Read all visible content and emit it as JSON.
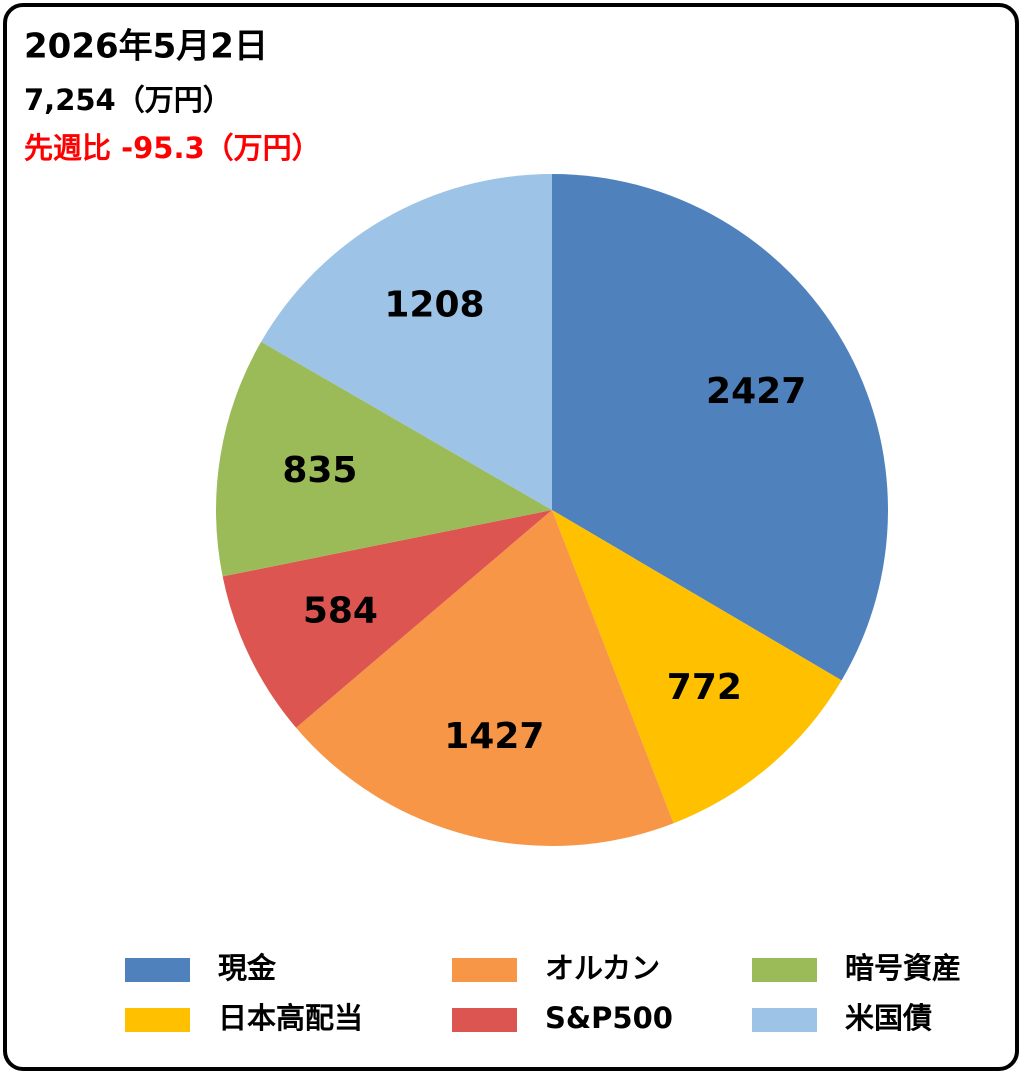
{
  "chart_data": {
    "type": "pie",
    "title": "2026年5月2日",
    "subtitle": "7,254（万円）",
    "annotation": "先週比 -95.3（万円）",
    "categories": [
      "現金",
      "日本高配当",
      "オルカン",
      "S&P500",
      "暗号資産",
      "米国債"
    ],
    "values": [
      2427,
      772,
      1427,
      584,
      835,
      1208
    ],
    "colors": [
      "#4f81bd",
      "#ffc000",
      "#f79646",
      "#dd5550",
      "#9bbb59",
      "#9dc3e6"
    ],
    "legend": "bottom"
  }
}
